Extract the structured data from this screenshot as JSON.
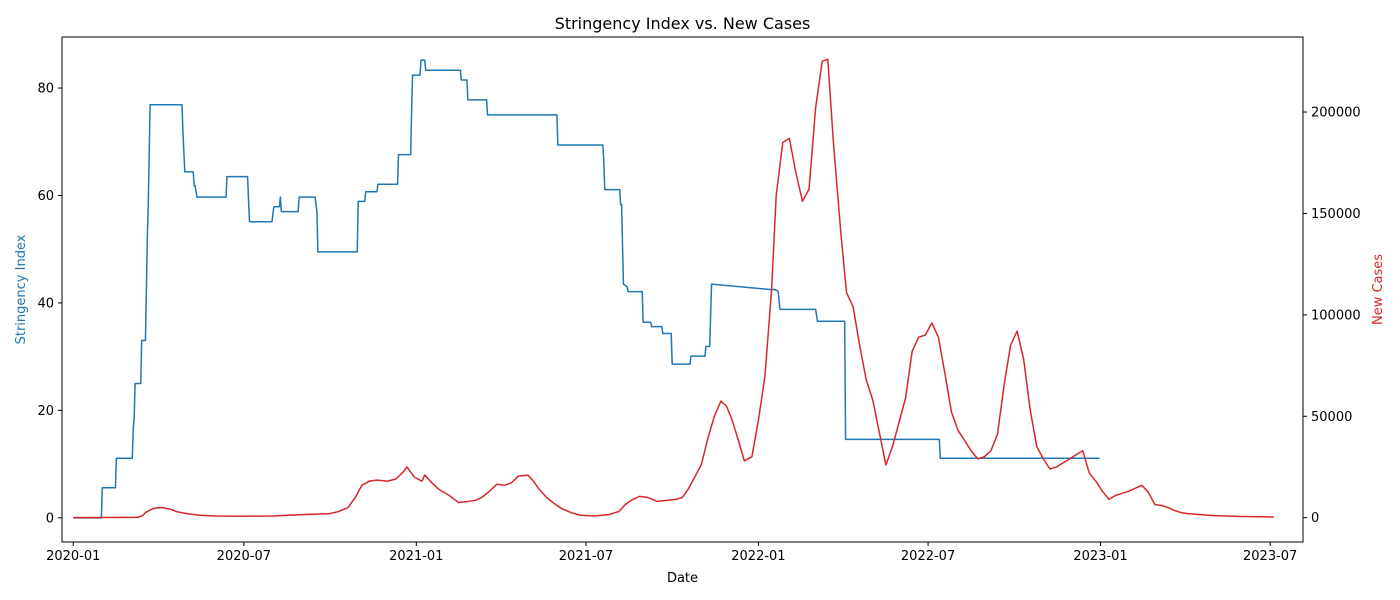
{
  "chart_data": {
    "type": "line",
    "title": "Stringency Index vs. New Cases",
    "xlabel": "Date",
    "x_ticks": [
      "2020-01",
      "2020-07",
      "2021-01",
      "2021-07",
      "2022-01",
      "2022-07",
      "2023-01",
      "2023-07"
    ],
    "xlim": [
      "2019-12-20",
      "2023-08-05"
    ],
    "left_axis": {
      "label": "Stringency Index",
      "color": "#1f77b4",
      "ylim": [
        -4.5,
        89.5
      ],
      "ticks": [
        0,
        20,
        40,
        60,
        80
      ]
    },
    "right_axis": {
      "label": "New Cases",
      "color": "#d62728",
      "ylim": [
        -12000,
        237000
      ],
      "ticks": [
        0,
        50000,
        100000,
        150000,
        200000
      ],
      "tick_labels": [
        "0",
        "50000",
        "100000",
        "150000",
        "200000"
      ]
    },
    "series": [
      {
        "axis": "left",
        "color": "#1f77b4",
        "points": [
          [
            "2020-01-01",
            0
          ],
          [
            "2020-01-31",
            0
          ],
          [
            "2020-02-01",
            5.6
          ],
          [
            "2020-02-15",
            5.6
          ],
          [
            "2020-02-16",
            11.1
          ],
          [
            "2020-03-04",
            11.1
          ],
          [
            "2020-03-05",
            16.7
          ],
          [
            "2020-03-06",
            18.5
          ],
          [
            "2020-03-07",
            25
          ],
          [
            "2020-03-13",
            25
          ],
          [
            "2020-03-14",
            33
          ],
          [
            "2020-03-18",
            33
          ],
          [
            "2020-03-19",
            42
          ],
          [
            "2020-03-20",
            52
          ],
          [
            "2020-03-21",
            58
          ],
          [
            "2020-03-23",
            76.9
          ],
          [
            "2020-04-26",
            76.9
          ],
          [
            "2020-04-27",
            72
          ],
          [
            "2020-04-29",
            64.4
          ],
          [
            "2020-05-08",
            64.4
          ],
          [
            "2020-05-09",
            61.8
          ],
          [
            "2020-05-10",
            61.8
          ],
          [
            "2020-05-12",
            59.7
          ],
          [
            "2020-06-12",
            59.7
          ],
          [
            "2020-06-13",
            63.5
          ],
          [
            "2020-07-05",
            63.5
          ],
          [
            "2020-07-07",
            55.1
          ],
          [
            "2020-07-31",
            55.1
          ],
          [
            "2020-08-02",
            57.9
          ],
          [
            "2020-08-08",
            57.9
          ],
          [
            "2020-08-09",
            59.7
          ],
          [
            "2020-08-10",
            57.0
          ],
          [
            "2020-08-28",
            57.0
          ],
          [
            "2020-08-29",
            59.7
          ],
          [
            "2020-09-15",
            59.7
          ],
          [
            "2020-09-17",
            57.0
          ],
          [
            "2020-09-18",
            49.5
          ],
          [
            "2020-10-30",
            49.5
          ],
          [
            "2020-10-31",
            58.9
          ],
          [
            "2020-11-07",
            58.9
          ],
          [
            "2020-11-08",
            60.7
          ],
          [
            "2020-11-20",
            60.7
          ],
          [
            "2020-11-21",
            62.1
          ],
          [
            "2020-12-12",
            62.1
          ],
          [
            "2020-12-13",
            67.6
          ],
          [
            "2020-12-26",
            67.6
          ],
          [
            "2020-12-27",
            75.8
          ],
          [
            "2020-12-28",
            82.4
          ],
          [
            "2021-01-05",
            82.4
          ],
          [
            "2021-01-06",
            85.2
          ],
          [
            "2021-01-10",
            85.2
          ],
          [
            "2021-01-11",
            83.3
          ],
          [
            "2021-02-17",
            83.3
          ],
          [
            "2021-02-18",
            81.5
          ],
          [
            "2021-02-24",
            81.5
          ],
          [
            "2021-02-25",
            77.8
          ],
          [
            "2021-03-17",
            77.8
          ],
          [
            "2021-03-18",
            75.0
          ],
          [
            "2021-05-31",
            75.0
          ],
          [
            "2021-06-01",
            69.4
          ],
          [
            "2021-07-19",
            69.4
          ],
          [
            "2021-07-20",
            66.7
          ],
          [
            "2021-07-21",
            61.1
          ],
          [
            "2021-08-06",
            61.1
          ],
          [
            "2021-08-07",
            58.3
          ],
          [
            "2021-08-08",
            58.3
          ],
          [
            "2021-08-10",
            43.5
          ],
          [
            "2021-08-14",
            43.0
          ],
          [
            "2021-08-15",
            42.1
          ],
          [
            "2021-08-30",
            42.1
          ],
          [
            "2021-08-31",
            36.4
          ],
          [
            "2021-09-08",
            36.4
          ],
          [
            "2021-09-09",
            35.6
          ],
          [
            "2021-09-20",
            35.6
          ],
          [
            "2021-09-21",
            34.3
          ],
          [
            "2021-09-30",
            34.3
          ],
          [
            "2021-10-01",
            28.6
          ],
          [
            "2021-10-20",
            28.6
          ],
          [
            "2021-10-21",
            30.1
          ],
          [
            "2021-11-05",
            30.1
          ],
          [
            "2021-11-06",
            31.9
          ],
          [
            "2021-11-10",
            31.9
          ],
          [
            "2021-11-12",
            43.5
          ],
          [
            "2022-01-13",
            42.5
          ],
          [
            "2022-01-18",
            42.5
          ],
          [
            "2022-01-22",
            42.2
          ],
          [
            "2022-01-24",
            38.8
          ],
          [
            "2022-03-03",
            38.8
          ],
          [
            "2022-03-05",
            36.6
          ],
          [
            "2022-04-03",
            36.6
          ],
          [
            "2022-04-04",
            14.6
          ],
          [
            "2022-07-13",
            14.6
          ],
          [
            "2022-07-14",
            11.1
          ],
          [
            "2022-12-31",
            11.1
          ]
        ]
      },
      {
        "axis": "right",
        "color": "#d62728",
        "points": [
          [
            "2020-01-01",
            0
          ],
          [
            "2020-03-10",
            200
          ],
          [
            "2020-03-15",
            1000
          ],
          [
            "2020-03-18",
            2500
          ],
          [
            "2020-03-22",
            3500
          ],
          [
            "2020-03-26",
            4500
          ],
          [
            "2020-04-05",
            5000
          ],
          [
            "2020-04-15",
            4000
          ],
          [
            "2020-04-20",
            3000
          ],
          [
            "2020-05-01",
            2000
          ],
          [
            "2020-05-15",
            1200
          ],
          [
            "2020-06-01",
            800
          ],
          [
            "2020-07-01",
            700
          ],
          [
            "2020-08-01",
            800
          ],
          [
            "2020-09-01",
            1500
          ],
          [
            "2020-10-01",
            2000
          ],
          [
            "2020-10-10",
            3000
          ],
          [
            "2020-10-20",
            5000
          ],
          [
            "2020-10-28",
            10000
          ],
          [
            "2020-11-04",
            16000
          ],
          [
            "2020-11-12",
            18000
          ],
          [
            "2020-11-20",
            18500
          ],
          [
            "2020-12-01",
            18000
          ],
          [
            "2020-12-10",
            19000
          ],
          [
            "2020-12-18",
            22500
          ],
          [
            "2020-12-22",
            25000
          ],
          [
            "2020-12-30",
            20000
          ],
          [
            "2021-01-07",
            18000
          ],
          [
            "2021-01-10",
            21000
          ],
          [
            "2021-01-18",
            17000
          ],
          [
            "2021-01-25",
            14000
          ],
          [
            "2021-02-05",
            11000
          ],
          [
            "2021-02-15",
            7500
          ],
          [
            "2021-02-25",
            8000
          ],
          [
            "2021-03-05",
            8500
          ],
          [
            "2021-03-12",
            10000
          ],
          [
            "2021-03-20",
            13000
          ],
          [
            "2021-03-28",
            16500
          ],
          [
            "2021-04-05",
            16000
          ],
          [
            "2021-04-12",
            17000
          ],
          [
            "2021-04-20",
            20500
          ],
          [
            "2021-04-30",
            21000
          ],
          [
            "2021-05-06",
            18000
          ],
          [
            "2021-05-12",
            14000
          ],
          [
            "2021-05-20",
            10000
          ],
          [
            "2021-05-28",
            7000
          ],
          [
            "2021-06-05",
            4500
          ],
          [
            "2021-06-15",
            2500
          ],
          [
            "2021-06-25",
            1200
          ],
          [
            "2021-07-10",
            800
          ],
          [
            "2021-07-25",
            1500
          ],
          [
            "2021-08-05",
            3000
          ],
          [
            "2021-08-12",
            6500
          ],
          [
            "2021-08-20",
            9000
          ],
          [
            "2021-08-27",
            10500
          ],
          [
            "2021-09-05",
            10000
          ],
          [
            "2021-09-15",
            8000
          ],
          [
            "2021-09-25",
            8500
          ],
          [
            "2021-10-05",
            9000
          ],
          [
            "2021-10-12",
            10000
          ],
          [
            "2021-10-18",
            14000
          ],
          [
            "2021-10-25",
            20000
          ],
          [
            "2021-11-01",
            26000
          ],
          [
            "2021-11-08",
            39000
          ],
          [
            "2021-11-15",
            50000
          ],
          [
            "2021-11-22",
            57500
          ],
          [
            "2021-11-28",
            55000
          ],
          [
            "2021-12-04",
            48000
          ],
          [
            "2021-12-10",
            39000
          ],
          [
            "2021-12-17",
            28000
          ],
          [
            "2021-12-25",
            30000
          ],
          [
            "2022-01-01",
            48000
          ],
          [
            "2022-01-08",
            70000
          ],
          [
            "2022-01-15",
            112000
          ],
          [
            "2022-01-20",
            159000
          ],
          [
            "2022-01-27",
            185000
          ],
          [
            "2022-02-03",
            187000
          ],
          [
            "2022-02-10",
            170000
          ],
          [
            "2022-02-17",
            156000
          ],
          [
            "2022-02-24",
            162000
          ],
          [
            "2022-03-03",
            202000
          ],
          [
            "2022-03-10",
            225000
          ],
          [
            "2022-03-16",
            226000
          ],
          [
            "2022-03-22",
            185000
          ],
          [
            "2022-03-30",
            140000
          ],
          [
            "2022-04-05",
            111000
          ],
          [
            "2022-04-12",
            104000
          ],
          [
            "2022-04-19",
            85000
          ],
          [
            "2022-04-26",
            68000
          ],
          [
            "2022-05-03",
            58000
          ],
          [
            "2022-05-10",
            42000
          ],
          [
            "2022-05-17",
            26000
          ],
          [
            "2022-05-24",
            35000
          ],
          [
            "2022-05-31",
            47000
          ],
          [
            "2022-06-07",
            59000
          ],
          [
            "2022-06-14",
            82000
          ],
          [
            "2022-06-21",
            89000
          ],
          [
            "2022-06-28",
            90000
          ],
          [
            "2022-07-05",
            96000
          ],
          [
            "2022-07-12",
            89000
          ],
          [
            "2022-07-19",
            71000
          ],
          [
            "2022-07-26",
            52000
          ],
          [
            "2022-08-02",
            43000
          ],
          [
            "2022-08-09",
            38000
          ],
          [
            "2022-08-16",
            33000
          ],
          [
            "2022-08-23",
            29000
          ],
          [
            "2022-08-30",
            30000
          ],
          [
            "2022-09-06",
            33000
          ],
          [
            "2022-09-13",
            41000
          ],
          [
            "2022-09-20",
            65000
          ],
          [
            "2022-09-27",
            85000
          ],
          [
            "2022-10-04",
            92000
          ],
          [
            "2022-10-11",
            78000
          ],
          [
            "2022-10-18",
            53000
          ],
          [
            "2022-10-25",
            35000
          ],
          [
            "2022-11-01",
            29000
          ],
          [
            "2022-11-08",
            24000
          ],
          [
            "2022-11-15",
            25000
          ],
          [
            "2022-11-22",
            27000
          ],
          [
            "2022-11-29",
            29000
          ],
          [
            "2022-12-06",
            31000
          ],
          [
            "2022-12-13",
            33000
          ],
          [
            "2022-12-20",
            22000
          ],
          [
            "2022-12-27",
            18000
          ],
          [
            "2023-01-03",
            13000
          ],
          [
            "2023-01-10",
            9000
          ],
          [
            "2023-01-17",
            11000
          ],
          [
            "2023-01-24",
            12000
          ],
          [
            "2023-01-31",
            13000
          ],
          [
            "2023-02-07",
            14500
          ],
          [
            "2023-02-14",
            16000
          ],
          [
            "2023-02-21",
            12500
          ],
          [
            "2023-02-28",
            6500
          ],
          [
            "2023-03-07",
            6000
          ],
          [
            "2023-03-14",
            5000
          ],
          [
            "2023-03-21",
            3500
          ],
          [
            "2023-03-28",
            2500
          ],
          [
            "2023-04-04",
            2000
          ],
          [
            "2023-04-18",
            1500
          ],
          [
            "2023-05-02",
            1000
          ],
          [
            "2023-05-16",
            800
          ],
          [
            "2023-05-30",
            600
          ],
          [
            "2023-06-13",
            500
          ],
          [
            "2023-06-27",
            400
          ],
          [
            "2023-07-05",
            300
          ]
        ]
      }
    ]
  }
}
